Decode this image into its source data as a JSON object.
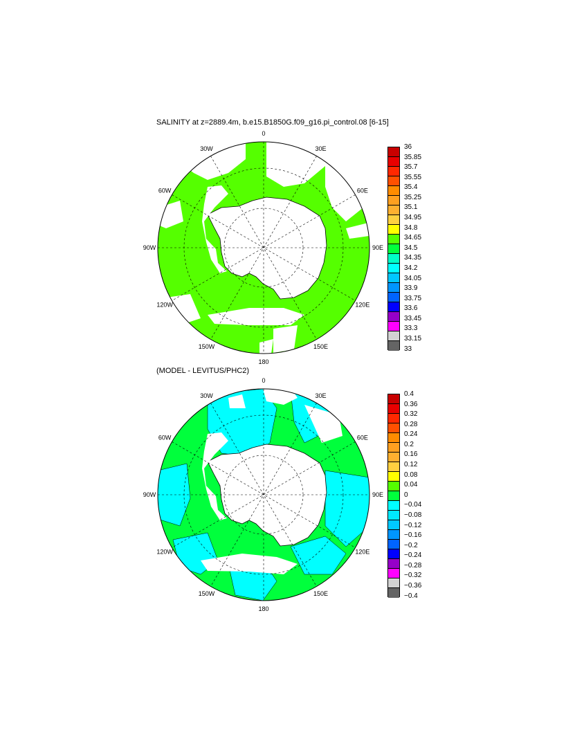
{
  "panels": [
    {
      "title": "SALINITY at z=2889.4m, b.e15.B1850G.f09_g16.pi_control.08 [6-15]",
      "lon_labels": [
        "0",
        "30E",
        "60E",
        "90E",
        "120E",
        "150E",
        "180",
        "150W",
        "120W",
        "90W",
        "60W",
        "30W"
      ],
      "colorbar_labels": [
        "36",
        "35.85",
        "35.7",
        "35.55",
        "35.4",
        "35.25",
        "35.1",
        "34.95",
        "34.8",
        "34.65",
        "34.5",
        "34.35",
        "34.2",
        "34.05",
        "33.9",
        "33.75",
        "33.6",
        "33.45",
        "33.3",
        "33.15",
        "33"
      ],
      "colorbar_colors": [
        "#c80000",
        "#e80000",
        "#ff2800",
        "#ff5000",
        "#ff8c00",
        "#ffa020",
        "#ffb030",
        "#ffd040",
        "#ffff00",
        "#55ff00",
        "#00ff3c",
        "#00ffc8",
        "#00ffff",
        "#00c8ff",
        "#0096ff",
        "#0064ff",
        "#0000ff",
        "#9600c8",
        "#ff00ff",
        "#d2d2d2",
        "#646464"
      ],
      "ocean_fill": "#55ff00"
    },
    {
      "title": "(MODEL - LEVITUS/PHC2)",
      "lon_labels": [
        "0",
        "30E",
        "60E",
        "90E",
        "120E",
        "150E",
        "180",
        "150W",
        "120W",
        "90W",
        "60W",
        "30W"
      ],
      "colorbar_labels": [
        "0.4",
        "0.36",
        "0.32",
        "0.28",
        "0.24",
        "0.2",
        "0.16",
        "0.12",
        "0.08",
        "0.04",
        "0",
        "−0.04",
        "−0.08",
        "−0.12",
        "−0.16",
        "−0.2",
        "−0.24",
        "−0.28",
        "−0.32",
        "−0.36",
        "−0.4"
      ],
      "colorbar_colors": [
        "#c80000",
        "#e80000",
        "#ff2800",
        "#ff5000",
        "#ff8c00",
        "#ffa020",
        "#ffb030",
        "#ffd040",
        "#ffff00",
        "#55ff00",
        "#00ff3c",
        "#00ffff",
        "#00e8ff",
        "#00c8ff",
        "#0096ff",
        "#0064ff",
        "#0000ff",
        "#9600c8",
        "#ff00ff",
        "#d2d2d2",
        "#646464"
      ],
      "ocean_fill": "#00ff3c",
      "anomaly_fill": "#00ffff"
    }
  ]
}
